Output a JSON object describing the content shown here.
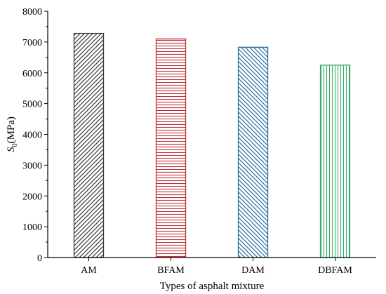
{
  "chart_data": {
    "type": "bar",
    "categories": [
      "AM",
      "BFAM",
      "DAM",
      "DBFAM"
    ],
    "values": [
      7280,
      7100,
      6830,
      6250
    ],
    "xlabel": "Types of asphalt mixture",
    "ylabel_symbol": "S",
    "ylabel_subscript": "0",
    "ylabel_unit": "(MPa)",
    "ylim": [
      0,
      8000
    ],
    "yticks": [
      0,
      1000,
      2000,
      3000,
      4000,
      5000,
      6000,
      7000,
      8000
    ],
    "grid": false,
    "legend": "none",
    "bar_colors": [
      "#3a3a3a",
      "#c0303a",
      "#2a6fa0",
      "#3aa86a"
    ],
    "bar_patterns": [
      "diagonal-up",
      "horizontal",
      "diagonal-down",
      "vertical"
    ]
  }
}
